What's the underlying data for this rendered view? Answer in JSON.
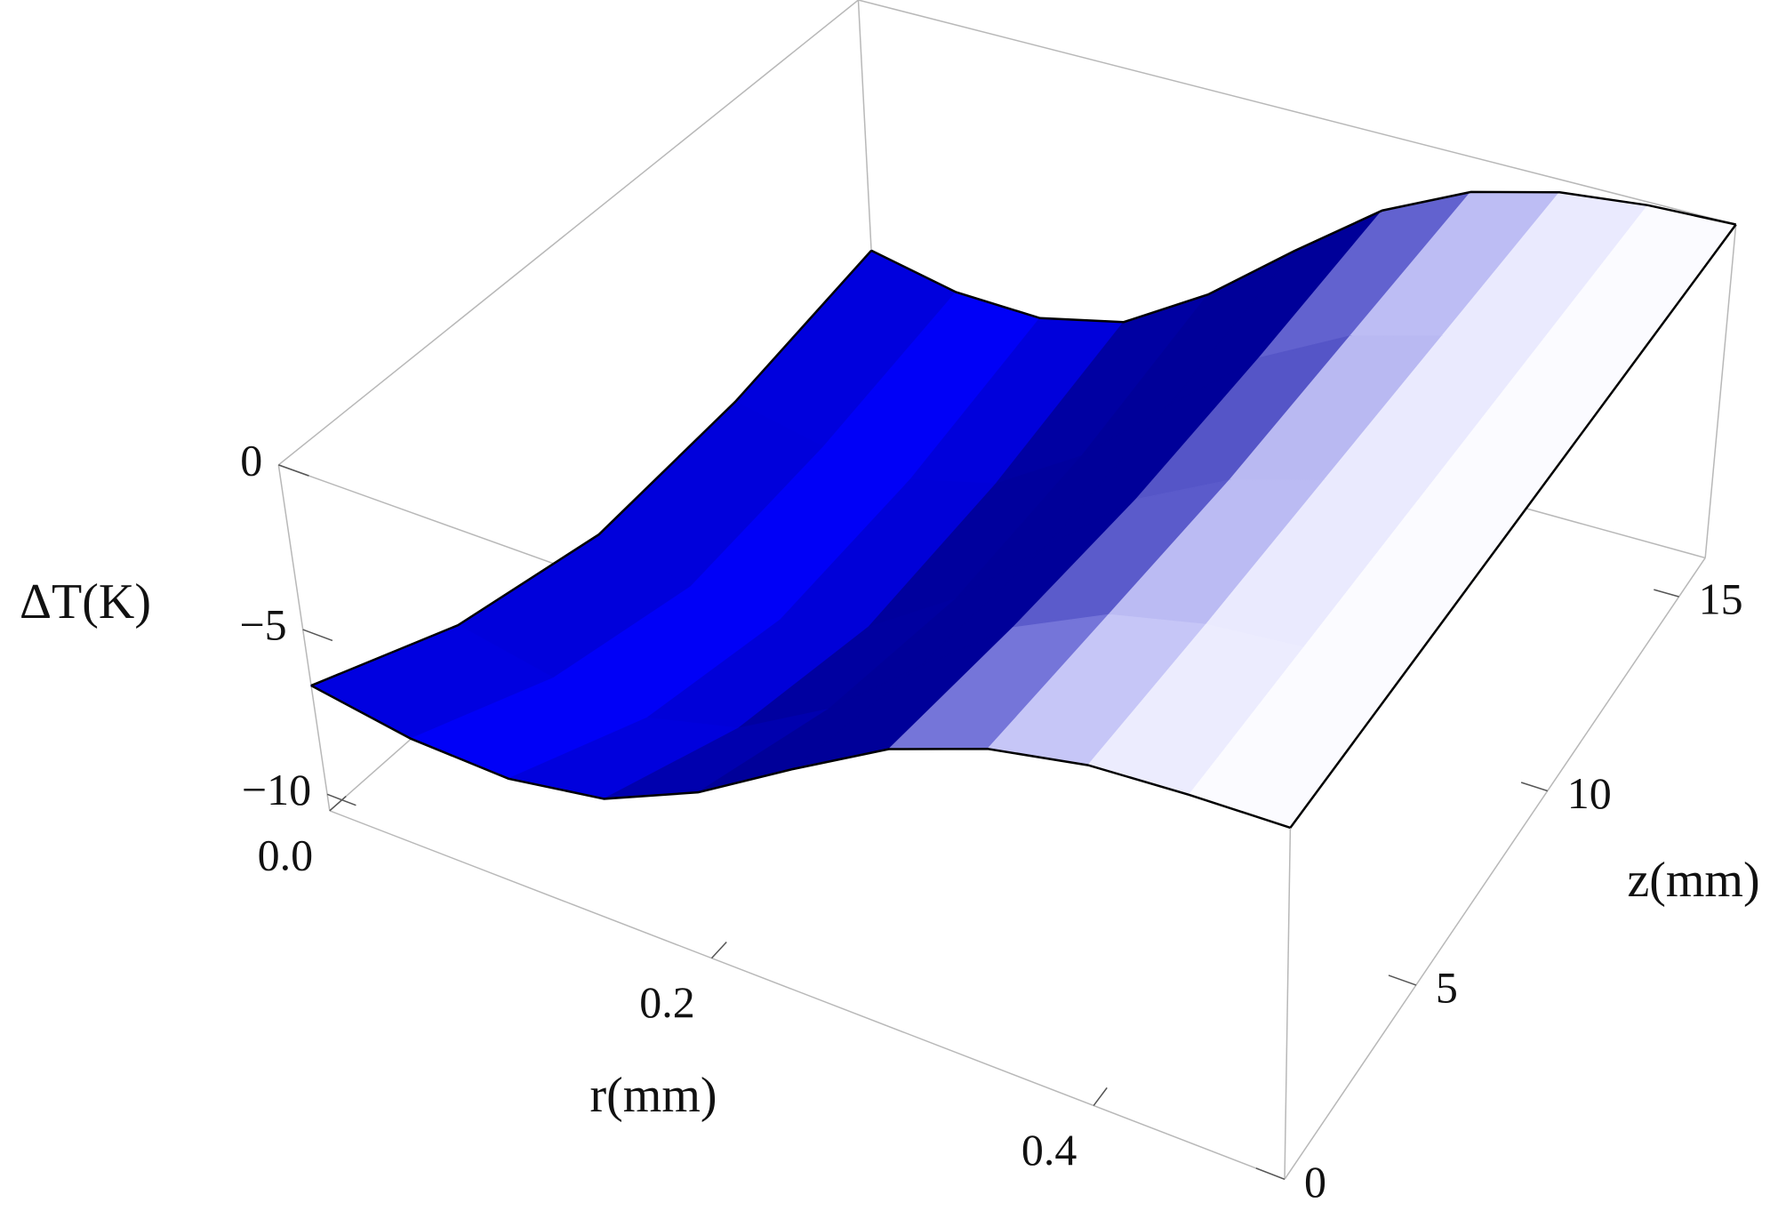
{
  "chart_data": {
    "type": "surface",
    "x_label": "r(mm)",
    "y_label": "z(mm)",
    "z_label": "ΔT(K)",
    "color": "#0000ff",
    "x": [
      0,
      0.05,
      0.1,
      0.15,
      0.2,
      0.25,
      0.3,
      0.35,
      0.4,
      0.45,
      0.5
    ],
    "y": [
      0,
      4,
      8,
      12,
      16
    ],
    "values": [
      [
        -6.7,
        -7.2,
        -7.3,
        -6.8,
        -5.5,
        -3.7,
        -2.0,
        -0.9,
        -0.3,
        -0.1,
        0
      ],
      [
        -8.5,
        -9.1,
        -9.3,
        -8.6,
        -7.0,
        -4.7,
        -2.5,
        -1.1,
        -0.4,
        -0.1,
        0
      ],
      [
        -9.4,
        -10.1,
        -10.2,
        -9.5,
        -7.7,
        -5.2,
        -2.8,
        -1.3,
        -0.4,
        -0.1,
        0
      ],
      [
        -9.0,
        -9.6,
        -9.8,
        -9.1,
        -7.4,
        -5.0,
        -2.7,
        -1.2,
        -0.4,
        -0.1,
        0
      ],
      [
        -8.0,
        -8.6,
        -8.7,
        -8.1,
        -6.5,
        -4.4,
        -2.4,
        -1.1,
        -0.4,
        -0.1,
        0
      ]
    ],
    "xlim": [
      0,
      0.5
    ],
    "ylim": [
      0,
      16
    ],
    "zlim": [
      -10.5,
      0
    ],
    "xticks": [
      {
        "value": 0,
        "label": "0.0"
      },
      0.2,
      0.4
    ],
    "yticks": [
      0,
      5,
      10,
      15
    ],
    "zticks": [
      0,
      {
        "value": -5,
        "label": "−5"
      },
      {
        "value": -10,
        "label": "−10"
      }
    ]
  }
}
